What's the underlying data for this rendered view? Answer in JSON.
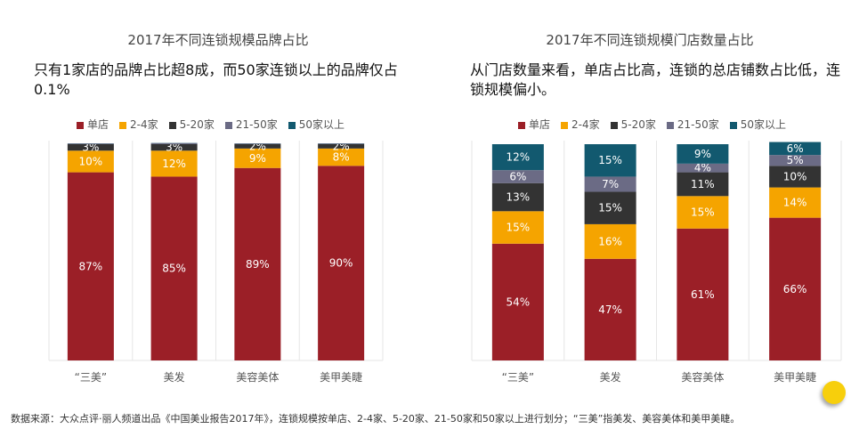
{
  "legend": [
    {
      "label": "单店",
      "color": "#9b1f27"
    },
    {
      "label": "2-4家",
      "color": "#f5a400"
    },
    {
      "label": "5-20家",
      "color": "#333333"
    },
    {
      "label": "21-50家",
      "color": "#6b6b85"
    },
    {
      "label": "50家以上",
      "color": "#12596f"
    }
  ],
  "chart_data": [
    {
      "type": "bar",
      "stacked": true,
      "title": "2017年不同连锁规模品牌占比",
      "subtitle": "只有1家店的品牌占比超8成，而50家连锁以上的品牌仅占0.1%",
      "categories": [
        "“三美”",
        "美发",
        "美容美体",
        "美甲美睫"
      ],
      "ylim": [
        0,
        100
      ],
      "grid": "vertical separators",
      "legend_placement": "top",
      "series": [
        {
          "name": "单店",
          "values": [
            87,
            85,
            89,
            90
          ],
          "labels": [
            "87%",
            "85%",
            "89%",
            "90%"
          ]
        },
        {
          "name": "2-4家",
          "values": [
            10,
            12,
            9,
            8
          ],
          "labels": [
            "10%",
            "12%",
            "9%",
            "8%"
          ]
        },
        {
          "name": "5-20家",
          "values": [
            3,
            3,
            2,
            2
          ],
          "labels": [
            "3%",
            "3%",
            "2%",
            "2%"
          ]
        },
        {
          "name": "21-50家",
          "values": [
            0.3,
            0.5,
            0.3,
            0.3
          ],
          "labels": [
            "",
            "",
            "",
            ""
          ]
        },
        {
          "name": "50家以上",
          "values": [
            0.1,
            0.1,
            0.1,
            0.1
          ],
          "labels": [
            "",
            "",
            "",
            ""
          ]
        }
      ]
    },
    {
      "type": "bar",
      "stacked": true,
      "title": "2017年不同连锁规模门店数量占比",
      "subtitle": "从门店数量来看，单店占比高，连锁的总店铺数占比低，连锁规模偏小。",
      "categories": [
        "“三美”",
        "美发",
        "美容美体",
        "美甲美睫"
      ],
      "ylim": [
        0,
        100
      ],
      "grid": "vertical separators",
      "legend_placement": "top",
      "series": [
        {
          "name": "单店",
          "values": [
            54,
            47,
            61,
            66
          ],
          "labels": [
            "54%",
            "47%",
            "61%",
            "66%"
          ]
        },
        {
          "name": "2-4家",
          "values": [
            15,
            16,
            15,
            14
          ],
          "labels": [
            "15%",
            "16%",
            "15%",
            "14%"
          ]
        },
        {
          "name": "5-20家",
          "values": [
            13,
            15,
            11,
            10
          ],
          "labels": [
            "13%",
            "15%",
            "11%",
            "10%"
          ]
        },
        {
          "name": "21-50家",
          "values": [
            6,
            7,
            4,
            5
          ],
          "labels": [
            "6%",
            "7%",
            "4%",
            "5%"
          ]
        },
        {
          "name": "50家以上",
          "values": [
            12,
            15,
            9,
            6
          ],
          "labels": [
            "12%",
            "15%",
            "9%",
            "6%"
          ]
        }
      ]
    }
  ],
  "source": "数据来源：大众点评·丽人频道出品《中国美业报告2017年》，连锁规模按单店、2-4家、5-20家、21-50家和50家以上进行划分；“三美”指美发、美容美体和美甲美睫。"
}
